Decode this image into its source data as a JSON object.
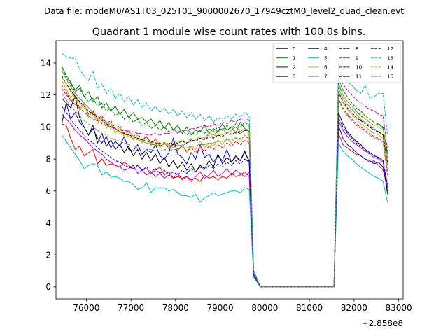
{
  "chart_data": {
    "type": "line",
    "suptitle": "Data file: modeM0/AS1T03_025T01_9000002670_17949cztM0_level2_quad_clean.evt",
    "title": "Quadrant 1 module wise count rates with 100.0s bins.",
    "xlabel": "",
    "ylabel": "",
    "x_offset_label": "+2.858e8",
    "xlim": [
      75320,
      83100
    ],
    "ylim": [
      -0.75,
      15.4
    ],
    "x_ticks": [
      76000,
      77000,
      78000,
      79000,
      80000,
      81000,
      82000,
      83000
    ],
    "x_tick_labels": [
      "76000",
      "77000",
      "78000",
      "79000",
      "80000",
      "81000",
      "82000",
      "83000"
    ],
    "y_ticks": [
      0,
      2,
      4,
      6,
      8,
      10,
      12,
      14
    ],
    "y_tick_labels": [
      "0",
      "2",
      "4",
      "6",
      "8",
      "10",
      "12",
      "14"
    ],
    "legend_loc": "upper right",
    "legend_ncol": 4,
    "gap_times": [
      79900,
      80000,
      80100,
      80200,
      80300,
      80400,
      80500,
      80600,
      80700,
      80800,
      80900,
      81000,
      81100,
      81200,
      81300,
      81400,
      81500
    ],
    "segments": [
      {
        "t_start": 75450,
        "dt": 100,
        "n": 43
      },
      {
        "t_start": 81650,
        "dt": 100,
        "n": 12
      }
    ],
    "series": [
      {
        "name": "0",
        "color": "#ff0000",
        "dash": "solid",
        "seg1": [
          10.2,
          10.1,
          9.3,
          8.6,
          8.8,
          8.2,
          8.4,
          8.6,
          7.7,
          8.0,
          7.6,
          7.7,
          7.6,
          7.5,
          7.8,
          7.6,
          7.4,
          7.6,
          7.3,
          7.4,
          7.1,
          7.3,
          7.5,
          7.0,
          7.2,
          6.8,
          6.9,
          6.8,
          6.9,
          6.7,
          6.8,
          6.6,
          7.0,
          6.8,
          6.9,
          6.7,
          6.9,
          6.8,
          7.1,
          6.9,
          7.0,
          7.2,
          6.9
        ],
        "seg2": [
          9.6,
          8.9,
          8.7,
          8.5,
          8.3,
          8.2,
          8.0,
          7.8,
          7.9,
          7.6,
          7.3,
          6.3
        ]
      },
      {
        "name": "1",
        "color": "#008000",
        "dash": "solid",
        "seg1": [
          13.8,
          13.2,
          12.8,
          12.3,
          12.6,
          11.9,
          12.2,
          11.6,
          11.9,
          11.2,
          11.5,
          11.0,
          11.3,
          10.8,
          11.1,
          10.6,
          10.9,
          10.5,
          10.6,
          10.3,
          10.5,
          10.1,
          10.4,
          9.9,
          10.3,
          9.8,
          10.1,
          9.6,
          10.0,
          9.5,
          9.8,
          9.7,
          10.1,
          9.6,
          9.9,
          9.7,
          10.2,
          9.8,
          10.0,
          9.6,
          10.3,
          9.9,
          9.7
        ],
        "seg2": [
          12.7,
          12.0,
          11.6,
          11.3,
          11.0,
          10.7,
          10.5,
          10.3,
          10.1,
          10.2,
          9.9,
          8.3
        ]
      },
      {
        "name": "2",
        "color": "#0000ff",
        "dash": "solid",
        "seg1": [
          11.8,
          11.5,
          10.5,
          10.9,
          10.3,
          10.0,
          9.5,
          9.9,
          9.3,
          9.0,
          9.4,
          8.7,
          9.1,
          8.8,
          9.4,
          8.6,
          8.5,
          8.9,
          8.3,
          8.6,
          8.4,
          8.9,
          8.2,
          8.0,
          8.4,
          9.3,
          8.3,
          8.1,
          7.7,
          8.4,
          8.0,
          8.9,
          8.1,
          8.3,
          7.8,
          8.2,
          7.9,
          8.6,
          7.8,
          8.1,
          7.9,
          8.4,
          7.9
        ],
        "seg2": [
          10.1,
          9.3,
          8.9,
          8.7,
          8.4,
          8.2,
          8.0,
          7.9,
          7.7,
          7.8,
          7.5,
          6.0
        ]
      },
      {
        "name": "3",
        "color": "#000000",
        "dash": "solid",
        "seg1": [
          10.2,
          11.5,
          11.2,
          11.9,
          10.6,
          10.0,
          9.5,
          10.1,
          9.0,
          9.6,
          8.8,
          9.2,
          8.6,
          8.9,
          8.4,
          8.8,
          8.2,
          8.6,
          8.0,
          8.4,
          7.9,
          8.3,
          7.7,
          8.1,
          7.5,
          7.9,
          7.4,
          7.8,
          7.3,
          7.7,
          7.2,
          7.6,
          7.4,
          7.9,
          7.5,
          8.3,
          7.7,
          8.1,
          7.8,
          8.2,
          7.9,
          8.5,
          7.8
        ],
        "seg2": [
          10.9,
          10.2,
          9.7,
          9.4,
          9.1,
          8.9,
          8.6,
          8.4,
          8.2,
          8.1,
          7.9,
          5.8
        ]
      },
      {
        "name": "4",
        "color": "#c000c0",
        "dash": "solid",
        "seg1": [
          10.8,
          10.5,
          10.2,
          9.8,
          9.5,
          9.3,
          9.0,
          8.7,
          8.5,
          8.3,
          8.0,
          7.8,
          7.6,
          7.5,
          7.3,
          7.4,
          7.6,
          7.1,
          7.3,
          7.0,
          7.2,
          6.9,
          7.1,
          6.8,
          7.0,
          6.8,
          7.1,
          6.7,
          6.9,
          6.6,
          6.9,
          7.2,
          6.8,
          7.0,
          7.3,
          6.9,
          7.1,
          7.4,
          7.0,
          7.3,
          7.1,
          6.9,
          7.2
        ],
        "seg2": [
          10.4,
          9.8,
          9.4,
          9.1,
          8.9,
          8.7,
          8.5,
          8.3,
          8.1,
          8.0,
          7.8,
          6.2
        ]
      },
      {
        "name": "5",
        "color": "#00bfbf",
        "dash": "solid",
        "seg1": [
          9.5,
          9.1,
          8.7,
          8.3,
          7.9,
          7.4,
          7.6,
          7.7,
          7.6,
          7.0,
          7.2,
          6.9,
          6.9,
          6.8,
          6.6,
          6.6,
          6.4,
          6.1,
          6.2,
          6.5,
          5.9,
          6.2,
          6.2,
          6.2,
          6.0,
          6.1,
          5.9,
          5.7,
          5.7,
          5.6,
          5.8,
          5.3,
          5.6,
          5.7,
          5.9,
          5.7,
          5.8,
          5.9,
          6.0,
          6.0,
          5.9,
          6.2,
          6.1
        ],
        "seg2": [
          9.0,
          8.5,
          8.2,
          8.0,
          7.7,
          7.5,
          7.3,
          7.1,
          6.9,
          6.8,
          6.6,
          5.3
        ]
      },
      {
        "name": "6",
        "color": "#bfbf00",
        "dash": "solid",
        "seg1": [
          12.9,
          12.4,
          11.8,
          12.2,
          11.0,
          11.5,
          10.6,
          11.0,
          10.2,
          10.6,
          9.9,
          10.3,
          9.6,
          10.0,
          9.4,
          9.8,
          9.2,
          9.5,
          9.0,
          9.4,
          8.8,
          9.3,
          8.7,
          9.1,
          8.6,
          9.0,
          8.5,
          8.9,
          8.4,
          8.8,
          8.6,
          9.1,
          8.7,
          9.0,
          8.8,
          9.2,
          8.9,
          9.3,
          9.0,
          9.4,
          9.1,
          9.5,
          9.2
        ],
        "seg2": [
          12.2,
          11.5,
          11.1,
          10.8,
          10.5,
          10.2,
          10.0,
          9.8,
          9.6,
          9.5,
          9.3,
          7.3
        ]
      },
      {
        "name": "7",
        "color": "#808080",
        "dash": "solid",
        "seg1": [
          13.5,
          13.0,
          12.5,
          12.1,
          11.8,
          11.5,
          11.2,
          10.9,
          10.7,
          10.5,
          10.3,
          10.1,
          9.9,
          9.7,
          9.6,
          9.4,
          9.3,
          9.2,
          9.1,
          9.0,
          8.9,
          8.9,
          8.8,
          8.8,
          8.9,
          8.7,
          8.9,
          8.8,
          9.0,
          9.1,
          9.2,
          9.4,
          9.3,
          9.6,
          9.5,
          9.7,
          9.9,
          9.6,
          9.8,
          10.0,
          9.7,
          9.9,
          9.8
        ],
        "seg2": [
          12.4,
          11.8,
          11.4,
          11.1,
          10.8,
          10.5,
          10.3,
          10.1,
          9.9,
          9.7,
          9.5,
          7.6
        ]
      },
      {
        "name": "8",
        "color": "#ff0000",
        "dash": "dashed",
        "seg1": [
          12.6,
          12.2,
          11.6,
          11.8,
          11.2,
          11.4,
          10.8,
          11.0,
          10.5,
          10.7,
          10.2,
          10.4,
          9.9,
          10.1,
          9.6,
          9.8,
          9.4,
          9.6,
          9.2,
          9.4,
          9.0,
          9.2,
          8.8,
          9.0,
          8.7,
          8.9,
          8.6,
          8.8,
          8.5,
          8.7,
          8.4,
          8.7,
          8.5,
          8.8,
          8.6,
          8.9,
          8.7,
          9.0,
          8.8,
          9.1,
          8.9,
          9.2,
          9.0
        ],
        "seg2": [
          11.8,
          11.2,
          10.8,
          10.5,
          10.2,
          10.0,
          9.8,
          9.6,
          9.4,
          9.3,
          9.1,
          7.0
        ]
      },
      {
        "name": "9",
        "color": "#008000",
        "dash": "dashed",
        "seg1": [
          13.6,
          13.1,
          12.7,
          12.2,
          12.4,
          11.9,
          11.6,
          11.8,
          11.3,
          11.5,
          11.0,
          11.2,
          10.7,
          10.9,
          10.5,
          10.7,
          10.3,
          10.5,
          10.1,
          10.3,
          9.9,
          10.1,
          9.8,
          10.0,
          9.7,
          9.9,
          9.6,
          9.8,
          9.5,
          9.7,
          9.5,
          9.8,
          9.6,
          9.9,
          9.7,
          10.0,
          9.8,
          10.1,
          9.9,
          10.2,
          10.0,
          10.3,
          10.1
        ],
        "seg2": [
          13.0,
          12.3,
          11.9,
          11.5,
          11.2,
          11.0,
          10.7,
          10.5,
          10.3,
          10.2,
          10.0,
          8.0
        ]
      },
      {
        "name": "10",
        "color": "#0000ff",
        "dash": "dashed",
        "seg1": [
          11.3,
          10.9,
          10.5,
          10.1,
          9.8,
          9.5,
          9.2,
          9.0,
          8.7,
          8.5,
          8.3,
          8.1,
          7.9,
          7.8,
          7.6,
          7.5,
          7.4,
          7.6,
          7.3,
          7.5,
          7.2,
          7.4,
          7.1,
          7.3,
          7.0,
          7.2,
          7.0,
          7.3,
          7.1,
          7.4,
          7.2,
          7.5,
          7.3,
          7.6,
          7.4,
          7.7,
          7.5,
          7.8,
          7.6,
          7.9,
          7.7,
          8.0,
          7.8
        ],
        "seg2": [
          10.6,
          10.0,
          9.6,
          9.3,
          9.0,
          8.8,
          8.6,
          8.4,
          8.2,
          8.1,
          7.9,
          6.4
        ]
      },
      {
        "name": "11",
        "color": "#000000",
        "dash": "dashed",
        "seg1": [
          13.2,
          12.7,
          12.3,
          11.9,
          11.6,
          11.3,
          11.0,
          10.8,
          10.6,
          10.4,
          10.2,
          10.0,
          9.9,
          9.7,
          9.6,
          9.5,
          9.4,
          9.3,
          9.2,
          9.1,
          9.1,
          9.0,
          9.0,
          8.9,
          9.0,
          8.9,
          9.0,
          9.1,
          9.0,
          9.2,
          9.1,
          9.3,
          9.2,
          9.4,
          9.3,
          9.5,
          9.4,
          9.6,
          9.5,
          9.7,
          9.6,
          9.8,
          9.7
        ],
        "seg2": [
          12.2,
          11.6,
          11.2,
          10.9,
          10.6,
          10.4,
          10.2,
          10.0,
          9.8,
          9.7,
          9.5,
          7.8
        ]
      },
      {
        "name": "12",
        "color": "#c000c0",
        "dash": "dashed",
        "seg1": [
          12.4,
          12.0,
          11.7,
          11.4,
          11.2,
          10.9,
          10.7,
          10.5,
          10.4,
          10.2,
          10.1,
          10.0,
          9.9,
          9.8,
          9.8,
          9.7,
          9.7,
          9.6,
          9.6,
          9.5,
          9.5,
          9.6,
          9.5,
          9.6,
          9.6,
          9.7,
          9.7,
          9.8,
          9.8,
          9.9,
          9.9,
          10.0,
          10.1,
          10.0,
          10.2,
          10.1,
          10.3,
          10.2,
          10.4,
          10.3,
          10.5,
          10.4,
          10.5
        ],
        "seg2": [
          13.3,
          12.7,
          12.3,
          12.0,
          11.7,
          11.5,
          11.3,
          11.1,
          11.0,
          10.8,
          10.7,
          8.5
        ]
      },
      {
        "name": "13",
        "color": "#00bfbf",
        "dash": "dashed",
        "seg1": [
          14.6,
          14.4,
          14.3,
          14.3,
          13.6,
          13.2,
          12.9,
          13.5,
          12.4,
          12.7,
          12.1,
          12.4,
          11.8,
          12.1,
          11.6,
          11.9,
          11.4,
          11.7,
          11.2,
          11.5,
          11.0,
          11.3,
          10.9,
          11.2,
          10.8,
          11.1,
          10.7,
          11.0,
          10.6,
          10.9,
          10.5,
          10.8,
          10.4,
          10.7,
          10.3,
          10.6,
          10.4,
          10.7,
          10.5,
          10.8,
          10.6,
          10.9,
          10.7
        ],
        "seg2": [
          13.9,
          13.2,
          12.8,
          12.6,
          12.3,
          12.1,
          12.6,
          11.8,
          11.9,
          12.1,
          12.1,
          9.5
        ]
      },
      {
        "name": "14",
        "color": "#bfbf00",
        "dash": "dashed",
        "seg1": [
          13.1,
          12.7,
          12.2,
          11.8,
          11.5,
          11.2,
          10.9,
          10.7,
          10.5,
          10.3,
          10.1,
          9.9,
          9.8,
          9.6,
          9.5,
          9.4,
          9.3,
          9.2,
          9.1,
          9.0,
          9.0,
          8.9,
          8.9,
          9.0,
          8.9,
          9.1,
          9.0,
          9.2,
          9.1,
          9.3,
          9.2,
          9.4,
          9.3,
          9.5,
          9.4,
          9.6,
          9.5,
          9.7,
          9.6,
          9.8,
          9.7,
          9.9,
          9.8
        ],
        "seg2": [
          12.6,
          12.0,
          11.6,
          11.3,
          11.0,
          10.8,
          10.5,
          10.3,
          10.1,
          10.0,
          9.8,
          7.9
        ]
      },
      {
        "name": "15",
        "color": "#808080",
        "dash": "dashed",
        "seg1": [
          12.1,
          11.7,
          11.3,
          11.0,
          10.7,
          10.4,
          10.2,
          10.0,
          9.8,
          9.6,
          9.5,
          9.3,
          9.2,
          9.1,
          9.0,
          8.9,
          8.8,
          8.7,
          8.7,
          8.6,
          8.6,
          8.5,
          8.5,
          8.6,
          8.5,
          8.6,
          8.6,
          8.7,
          8.7,
          8.8,
          8.8,
          8.9,
          8.9,
          9.0,
          9.0,
          9.1,
          9.1,
          9.2,
          9.2,
          9.3,
          9.3,
          9.4,
          9.3
        ],
        "seg2": [
          11.7,
          11.1,
          10.7,
          10.4,
          10.1,
          9.9,
          9.7,
          9.5,
          9.3,
          9.2,
          9.0,
          7.2
        ]
      }
    ]
  }
}
